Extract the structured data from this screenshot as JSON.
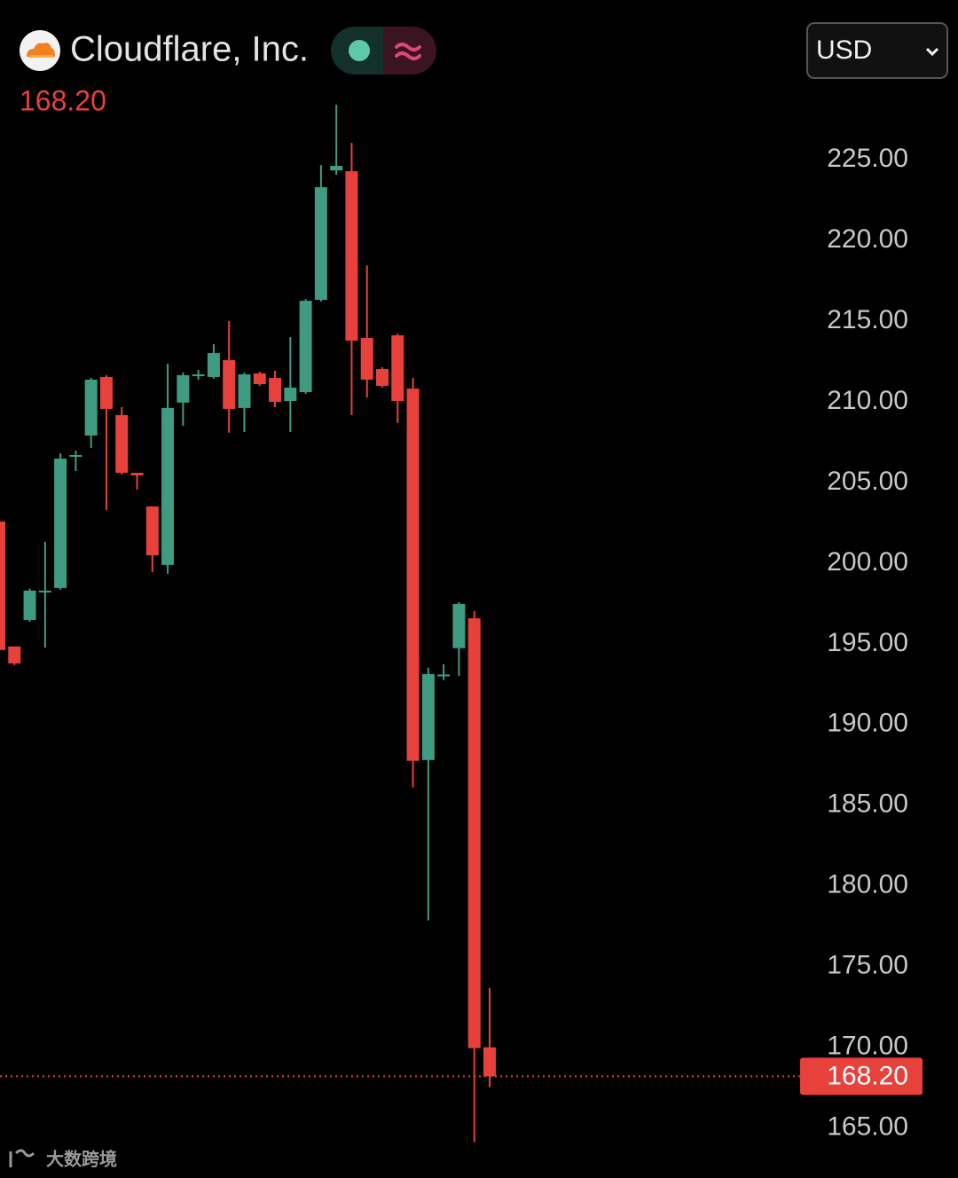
{
  "chart_data": {
    "type": "candlestick",
    "title": "Cloudflare, Inc.",
    "currency": "USD",
    "last_price": {
      "value": 168.2,
      "label": "168.20"
    },
    "watermark": "大数跨境",
    "up_color": "#3f9c82",
    "down_color": "#e8413c",
    "ylim": [
      161.9,
      234.9
    ],
    "yticks": [
      {
        "value": 165,
        "label": "165.00"
      },
      {
        "value": 170,
        "label": "170.00"
      },
      {
        "value": 175,
        "label": "175.00"
      },
      {
        "value": 180,
        "label": "180.00"
      },
      {
        "value": 185,
        "label": "185.00"
      },
      {
        "value": 190,
        "label": "190.00"
      },
      {
        "value": 195,
        "label": "195.00"
      },
      {
        "value": 200,
        "label": "200.00"
      },
      {
        "value": 205,
        "label": "205.00"
      },
      {
        "value": 210,
        "label": "210.00"
      },
      {
        "value": 215,
        "label": "215.00"
      },
      {
        "value": 220,
        "label": "220.00"
      },
      {
        "value": 225,
        "label": "225.00"
      }
    ],
    "open": [
      202.58,
      194.84,
      196.48,
      198.2,
      198.46,
      206.6,
      207.91,
      211.54,
      209.18,
      205.6,
      203.52,
      199.89,
      209.95,
      211.6,
      211.54,
      212.58,
      209.62,
      211.76,
      211.48,
      210.05,
      210.6,
      216.32,
      224.34,
      224.29,
      213.96,
      212.03,
      214.12,
      210.82,
      187.8,
      193.0,
      194.73,
      196.59,
      170.0
    ],
    "high": [
      202.58,
      194.84,
      198.41,
      201.32,
      206.81,
      206.98,
      211.48,
      211.65,
      209.67,
      205.6,
      203.52,
      212.36,
      211.81,
      211.98,
      213.57,
      215.0,
      211.81,
      211.87,
      211.92,
      214.01,
      216.37,
      224.67,
      228.41,
      226.04,
      218.46,
      212.14,
      214.23,
      211.48,
      193.52,
      193.74,
      197.58,
      197.03,
      173.68
    ],
    "low": [
      194.62,
      193.68,
      196.37,
      194.78,
      198.35,
      205.71,
      207.14,
      203.3,
      205.49,
      204.56,
      199.45,
      199.34,
      208.52,
      211.37,
      211.43,
      208.08,
      208.13,
      210.99,
      209.67,
      208.13,
      210.49,
      216.21,
      224.07,
      209.18,
      210.27,
      210.88,
      208.68,
      186.1,
      177.86,
      192.75,
      193.02,
      164.12,
      167.53
    ],
    "close": [
      194.62,
      193.79,
      198.3,
      198.3,
      206.48,
      206.7,
      211.37,
      209.56,
      205.6,
      205.44,
      200.49,
      209.62,
      211.65,
      211.7,
      213.02,
      209.56,
      211.7,
      211.1,
      210.0,
      210.88,
      216.26,
      223.3,
      224.62,
      213.79,
      211.37,
      210.99,
      210.05,
      187.75,
      193.13,
      193.1,
      197.47,
      169.95,
      168.2
    ]
  }
}
